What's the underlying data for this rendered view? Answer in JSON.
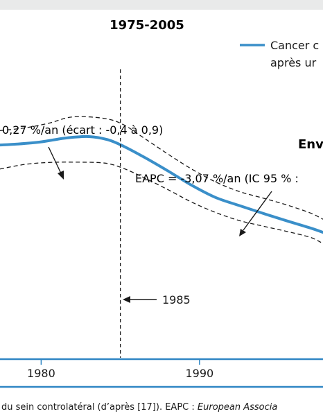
{
  "chart_data": {
    "type": "line",
    "title": "1975-2005",
    "xlabel": "",
    "ylabel": "",
    "x_tick_labels": [
      "1980",
      "1990"
    ],
    "x_ticks": [
      1980,
      1990
    ],
    "xlim": [
      1977.4,
      1997.8
    ],
    "ylim": [
      0,
      10
    ],
    "grid": false,
    "legend_position": "top-right",
    "legend": {
      "label_line1": "Cancer c",
      "label_line2": "après ur"
    },
    "series": [
      {
        "name": "Cancer c",
        "color": "#3a8fc9",
        "x": [
          1977.4,
          1978.5,
          1980,
          1981.5,
          1983,
          1984.2,
          1985.2,
          1986.5,
          1988,
          1989.5,
          1991,
          1992.5,
          1994,
          1995.5,
          1997,
          1997.8
        ],
        "y": [
          6.82,
          6.85,
          6.92,
          7.04,
          7.09,
          6.99,
          6.78,
          6.43,
          5.99,
          5.53,
          5.14,
          4.88,
          4.63,
          4.39,
          4.16,
          4.02
        ]
      },
      {
        "name": "",
        "style": "dashed",
        "color": "#1a1a1a",
        "x": [
          1977.4,
          1979,
          1980.5,
          1982,
          1984,
          1985.2,
          1986.5,
          1988,
          1989.5,
          1991,
          1992.5,
          1994,
          1995.5,
          1997,
          1997.8
        ],
        "y": [
          7.28,
          7.37,
          7.52,
          7.72,
          7.67,
          7.47,
          7.04,
          6.53,
          6.05,
          5.64,
          5.33,
          5.12,
          4.9,
          4.64,
          4.44
        ]
      },
      {
        "name": "",
        "style": "dashed",
        "color": "#1a1a1a",
        "x": [
          1977.4,
          1979,
          1980.5,
          1982,
          1984,
          1985.2,
          1986.5,
          1988,
          1989.5,
          1991,
          1992.5,
          1994,
          1995.5,
          1997,
          1997.8
        ],
        "y": [
          6.05,
          6.2,
          6.26,
          6.27,
          6.24,
          6.07,
          5.77,
          5.39,
          4.99,
          4.66,
          4.4,
          4.22,
          4.05,
          3.86,
          3.66
        ]
      }
    ],
    "vertical_marker": {
      "x": 1985,
      "label": "1985"
    },
    "annotations": [
      {
        "text": "0,27 %/an (écart : -0,4 à 0,9)"
      },
      {
        "text": "EAPC = -3,07 %/an (IC 95 % :"
      },
      {
        "text": "Env"
      }
    ]
  },
  "caption": {
    "before_italic": "du sein controlatéral (d’après [17]). EAPC : ",
    "italic": "European Associa"
  },
  "colors": {
    "series_blue": "#3a8fc9",
    "frame_blue": "#2f86c4",
    "top_band": "#e9eaea"
  }
}
